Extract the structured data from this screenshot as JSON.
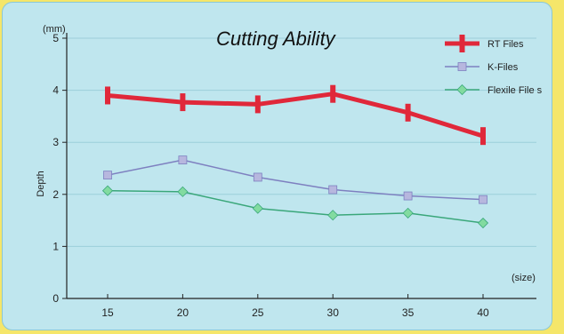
{
  "chart_data": {
    "type": "line",
    "title": "Cutting Ability",
    "ylabel": "Depth",
    "yunit": "(mm)",
    "xunit": "(size)",
    "x": [
      15,
      20,
      25,
      30,
      35,
      40
    ],
    "xticks": [
      "15",
      "20",
      "25",
      "30",
      "35",
      "40"
    ],
    "ylim": [
      0,
      5
    ],
    "yticks": [
      "0",
      "1",
      "2",
      "3",
      "4",
      "5"
    ],
    "grid": true,
    "legend_position": "top-right",
    "series": [
      {
        "name": "RT Files",
        "values": [
          3.9,
          3.77,
          3.73,
          3.93,
          3.57,
          3.12
        ],
        "color": "#e0283a",
        "marker": "bar"
      },
      {
        "name": "K-Files",
        "values": [
          2.37,
          2.66,
          2.33,
          2.09,
          1.97,
          1.9
        ],
        "color": "#7e80c0",
        "marker": "square"
      },
      {
        "name": "Flexile File s",
        "values": [
          2.07,
          2.05,
          1.73,
          1.6,
          1.64,
          1.45
        ],
        "color": "#3aa77a",
        "marker": "diamond"
      }
    ]
  }
}
